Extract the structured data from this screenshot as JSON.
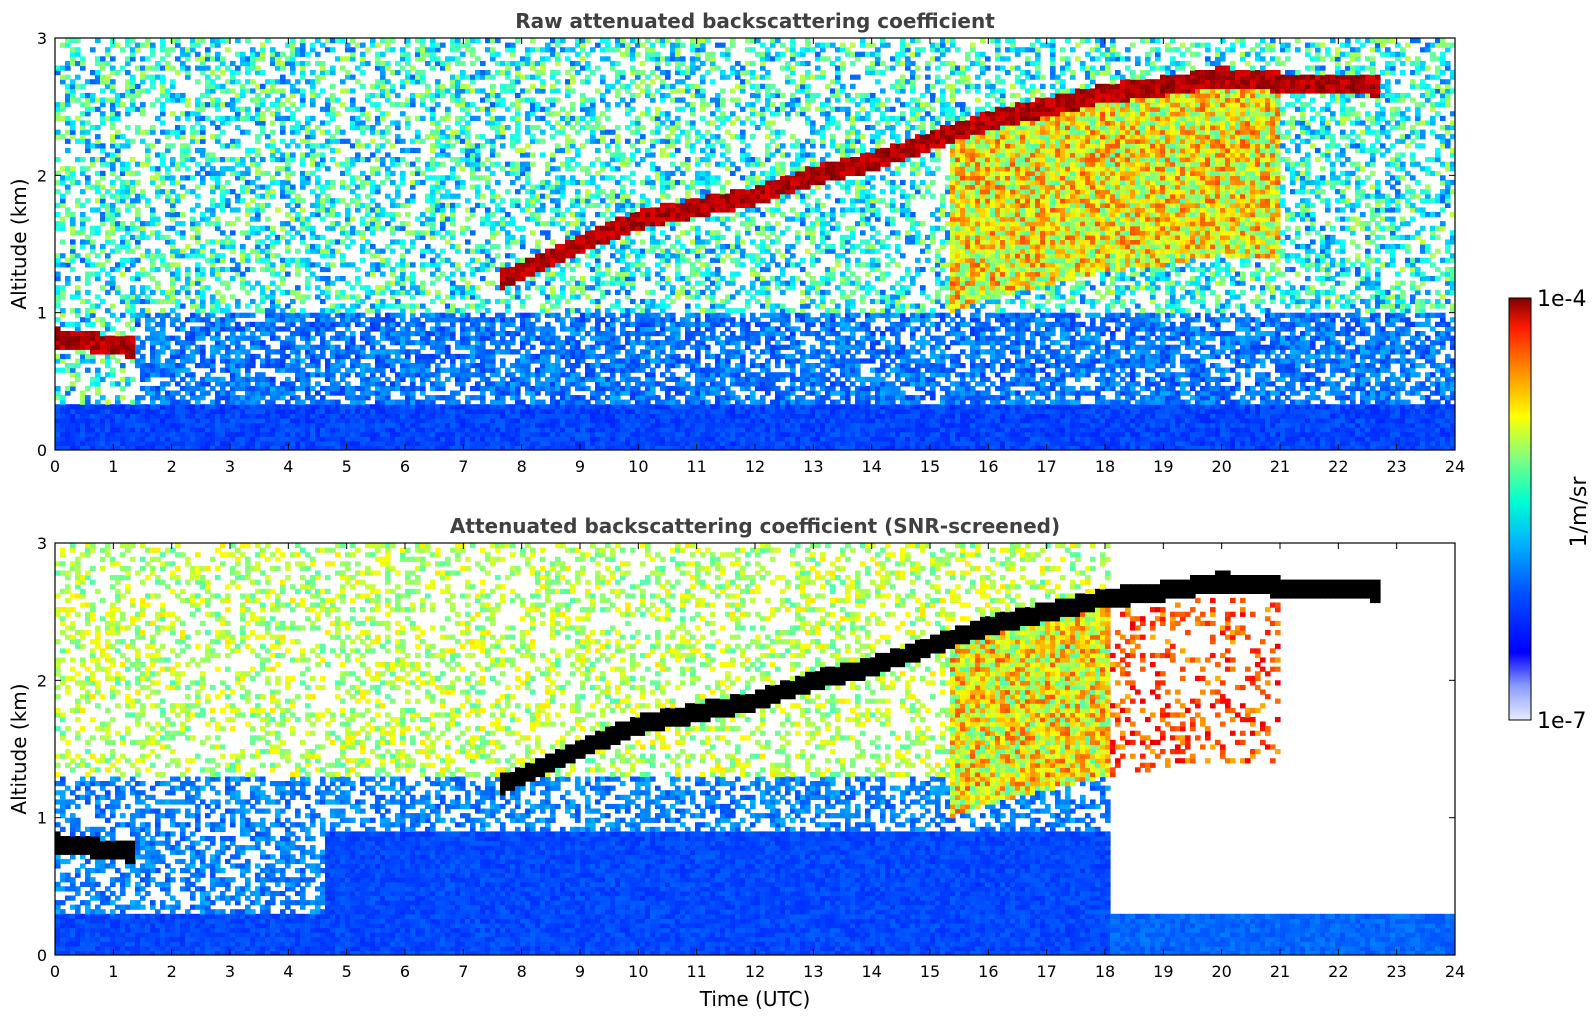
{
  "figure": {
    "colorbar": {
      "max_label": "1e-4",
      "min_label": "1e-7",
      "unit_label": "1/m/sr",
      "colormap": "jet",
      "scale": "log",
      "min_value": 1e-07,
      "max_value": 0.0001
    }
  },
  "chart_data": [
    {
      "type": "heatmap",
      "title": "Raw attenuated backscattering coefficient",
      "xlabel": "",
      "ylabel": "Altitude (km)",
      "xlim": [
        0,
        24
      ],
      "ylim": [
        0,
        3
      ],
      "x_ticks": [
        "0",
        "1",
        "2",
        "3",
        "4",
        "5",
        "6",
        "7",
        "8",
        "9",
        "10",
        "11",
        "12",
        "13",
        "14",
        "15",
        "16",
        "17",
        "18",
        "19",
        "20",
        "21",
        "22",
        "23",
        "24"
      ],
      "y_ticks": [
        "0",
        "1",
        "2",
        "3"
      ],
      "features": {
        "cloud_base_km": [
          {
            "t": 0,
            "z": 0.82
          },
          {
            "t": 1.3,
            "z": 0.75
          },
          {
            "t": 7.7,
            "z": 1.25
          },
          {
            "t": 9,
            "z": 1.5
          },
          {
            "t": 10,
            "z": 1.68
          },
          {
            "t": 12,
            "z": 1.85
          },
          {
            "t": 13,
            "z": 2.0
          },
          {
            "t": 14,
            "z": 2.1
          },
          {
            "t": 15,
            "z": 2.25
          },
          {
            "t": 16,
            "z": 2.4
          },
          {
            "t": 17,
            "z": 2.5
          },
          {
            "t": 18,
            "z": 2.6
          },
          {
            "t": 19,
            "z": 2.65
          },
          {
            "t": 20,
            "z": 2.72
          },
          {
            "t": 21,
            "z": 2.68
          },
          {
            "t": 22.7,
            "z": 2.65
          }
        ],
        "precip_span_hours": [
          15.3,
          21.0
        ]
      }
    },
    {
      "type": "heatmap",
      "title": "Attenuated backscattering coefficient (SNR-screened)",
      "xlabel": "Time (UTC)",
      "ylabel": "Altitude (km)",
      "xlim": [
        0,
        24
      ],
      "ylim": [
        0,
        3
      ],
      "x_ticks": [
        "0",
        "1",
        "2",
        "3",
        "4",
        "5",
        "6",
        "7",
        "8",
        "9",
        "10",
        "11",
        "12",
        "13",
        "14",
        "15",
        "16",
        "17",
        "18",
        "19",
        "20",
        "21",
        "22",
        "23",
        "24"
      ],
      "y_ticks": [
        "0",
        "1",
        "2",
        "3"
      ],
      "features": {
        "cloud_base_km": [
          {
            "t": 0,
            "z": 0.82
          },
          {
            "t": 1.3,
            "z": 0.75
          },
          {
            "t": 7.7,
            "z": 1.25
          },
          {
            "t": 9,
            "z": 1.5
          },
          {
            "t": 10,
            "z": 1.68
          },
          {
            "t": 12,
            "z": 1.85
          },
          {
            "t": 13,
            "z": 2.0
          },
          {
            "t": 14,
            "z": 2.1
          },
          {
            "t": 15,
            "z": 2.25
          },
          {
            "t": 16,
            "z": 2.4
          },
          {
            "t": 17,
            "z": 2.5
          },
          {
            "t": 18,
            "z": 2.6
          },
          {
            "t": 19,
            "z": 2.65
          },
          {
            "t": 20,
            "z": 2.72
          },
          {
            "t": 21,
            "z": 2.68
          },
          {
            "t": 22.7,
            "z": 2.65
          }
        ],
        "screened_gap_hours": [
          18.1,
          24.0
        ],
        "boundary_layer_top_km": 0.3
      }
    }
  ]
}
